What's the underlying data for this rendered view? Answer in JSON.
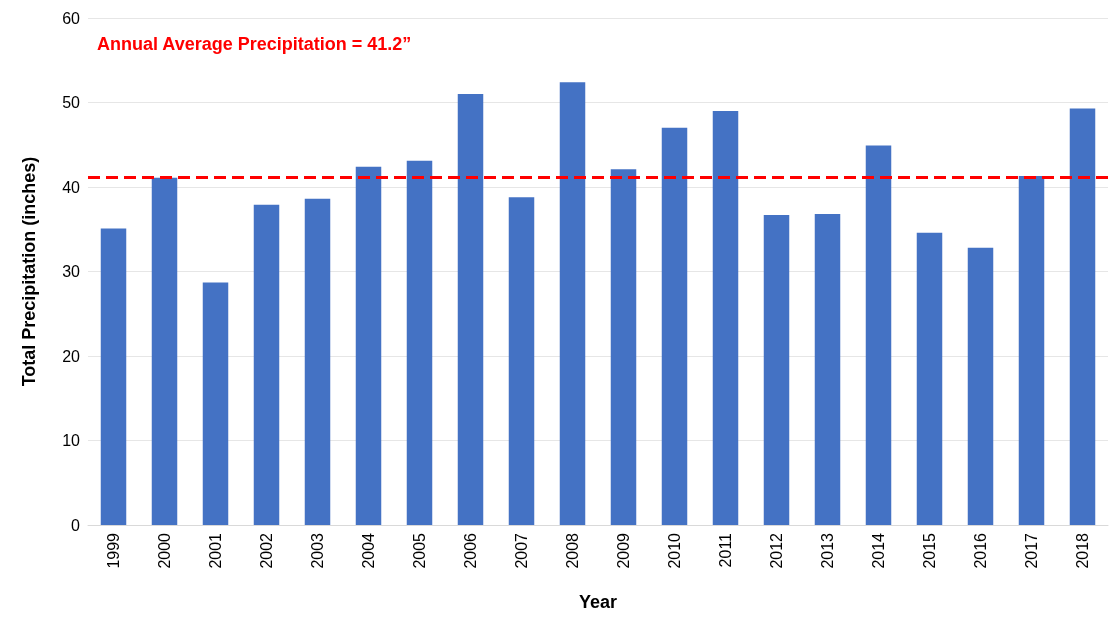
{
  "chart_data": {
    "type": "bar",
    "xlabel": "Year",
    "ylabel": "Total Precipitation (inches)",
    "categories": [
      "1999",
      "2000",
      "2001",
      "2002",
      "2003",
      "2004",
      "2005",
      "2006",
      "2007",
      "2008",
      "2009",
      "2010",
      "2011",
      "2012",
      "2013",
      "2014",
      "2015",
      "2016",
      "2017",
      "2018"
    ],
    "values": [
      35.1,
      41.1,
      28.7,
      37.9,
      38.6,
      42.4,
      43.1,
      51.0,
      38.8,
      52.4,
      42.1,
      47.0,
      49.0,
      36.7,
      36.8,
      44.9,
      34.6,
      32.8,
      41.3,
      49.3
    ],
    "color": "#4472c4",
    "ylim": [
      0,
      60
    ],
    "yticks": [
      0,
      10,
      20,
      30,
      40,
      50,
      60
    ],
    "grid": "y",
    "ref_lines": [
      {
        "axis": "y",
        "value": 41.2,
        "label": "Annual Average Precipitation = 41.2”",
        "color": "#ff0000",
        "line_style": "dashed"
      }
    ]
  }
}
